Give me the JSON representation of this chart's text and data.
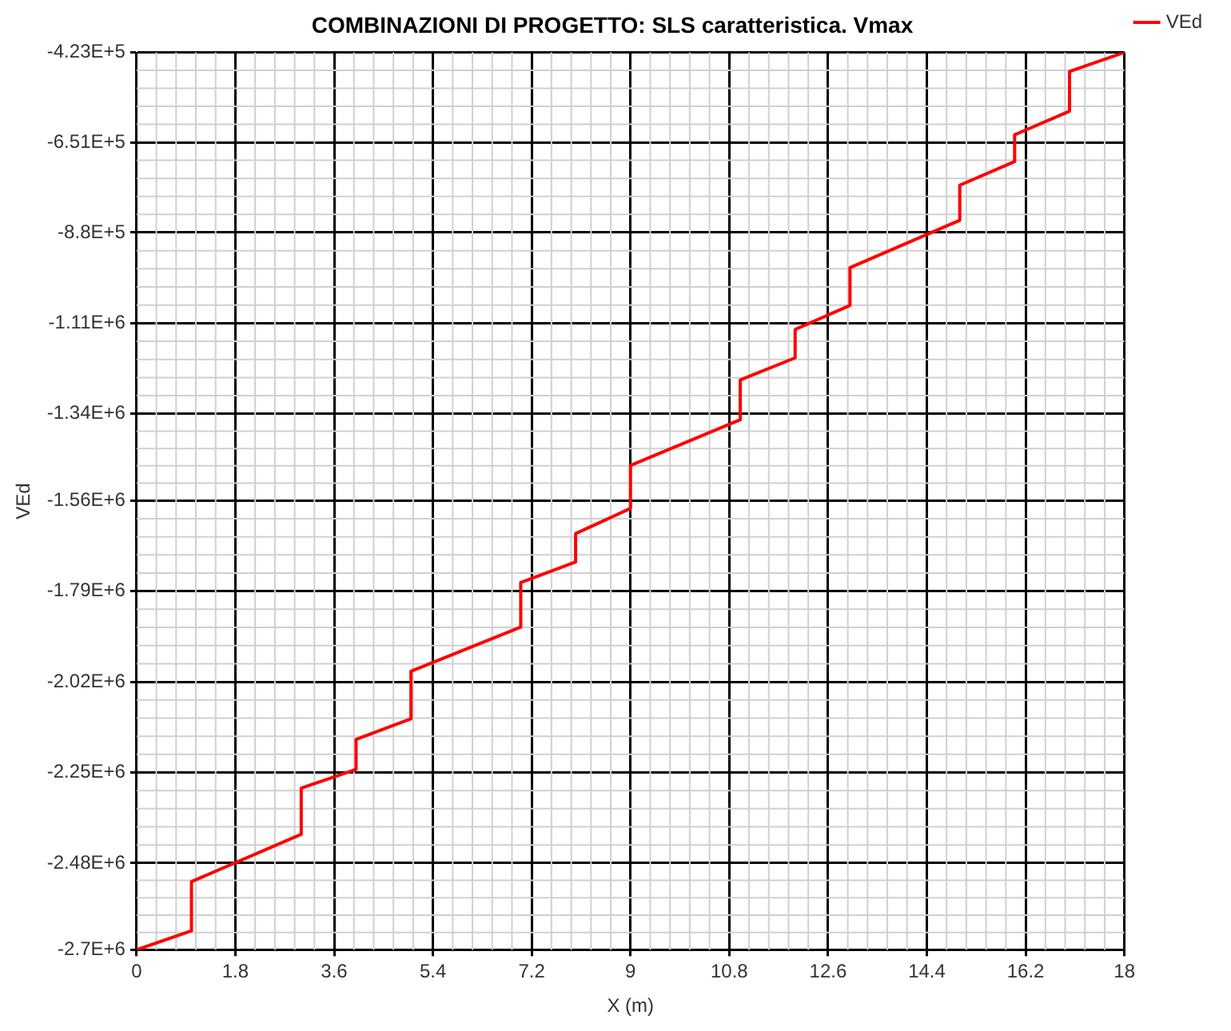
{
  "chart_data": {
    "type": "line",
    "title": "COMBINAZIONI DI PROGETTO: SLS caratteristica. Vmax",
    "xlabel": "X (m)",
    "ylabel": "VEd",
    "series": [
      {
        "name": "VEd",
        "color": "#ff0000",
        "x": [
          0,
          1,
          1,
          3,
          3,
          4,
          4,
          5,
          5,
          7,
          7,
          8,
          8,
          9,
          9,
          11,
          11,
          12,
          12,
          13,
          13,
          15,
          15,
          16,
          16,
          17,
          17,
          18
        ],
        "values": [
          -2700000,
          -2652000,
          -2527000,
          -2407000,
          -2290000,
          -2242000,
          -2166000,
          -2114000,
          -1993000,
          -1881000,
          -1768000,
          -1716000,
          -1644000,
          -1580000,
          -1471000,
          -1355000,
          -1254000,
          -1198000,
          -1126000,
          -1065000,
          -969000,
          -849000,
          -760000,
          -700000,
          -632000,
          -572000,
          -471000,
          -423000
        ]
      }
    ],
    "xlim": [
      0,
      18
    ],
    "xticks": [
      0,
      1.8,
      3.6,
      5.4,
      7.2,
      9,
      10.8,
      12.6,
      14.4,
      16.2,
      18
    ],
    "ylim": [
      -2700000,
      -423000
    ],
    "yticks": [
      {
        "value": -2700000,
        "label": "-2.7E+6"
      },
      {
        "value": -2480000,
        "label": "-2.48E+6"
      },
      {
        "value": -2250000,
        "label": "-2.25E+6"
      },
      {
        "value": -2020000,
        "label": "-2.02E+6"
      },
      {
        "value": -1790000,
        "label": "-1.79E+6"
      },
      {
        "value": -1560000,
        "label": "-1.56E+6"
      },
      {
        "value": -1340000,
        "label": "-1.34E+6"
      },
      {
        "value": -1110000,
        "label": "-1.11E+6"
      },
      {
        "value": -880000,
        "label": "-8.8E+5"
      },
      {
        "value": -651000,
        "label": "-6.51E+5"
      },
      {
        "value": -423000,
        "label": "-4.23E+5"
      }
    ],
    "grid": true,
    "legend": "top right",
    "marker": "none",
    "line_style": "solid"
  }
}
